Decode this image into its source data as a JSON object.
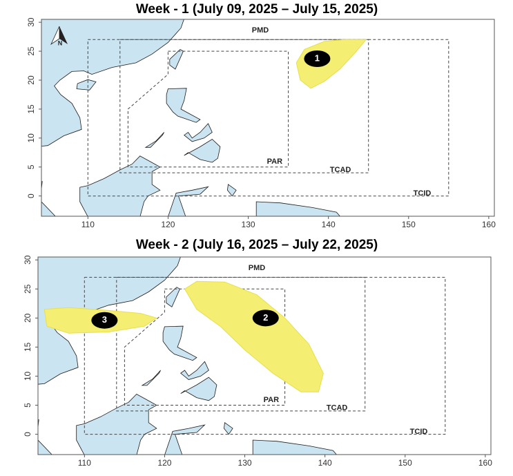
{
  "north": "N",
  "maps": [
    {
      "title": "Week - 1 (July 09, 2025 – July 15, 2025)",
      "xlim": [
        104.2,
        160.7
      ],
      "ylim": [
        -3.5,
        30.5
      ],
      "xticks": [
        110,
        120,
        130,
        140,
        150,
        160
      ],
      "yticks": [
        0,
        5,
        10,
        15,
        20,
        25,
        30
      ],
      "regions": [
        "PMD",
        "PAR",
        "TCAD",
        "TCID"
      ],
      "outlooks": [
        "1"
      ]
    },
    {
      "title": "Week - 2 (July 16, 2025 – July 22, 2025)",
      "xlim": [
        104.2,
        160.7
      ],
      "ylim": [
        -3.5,
        30.5
      ],
      "xticks": [
        110,
        120,
        130,
        140,
        150,
        160
      ],
      "yticks": [
        0,
        5,
        10,
        15,
        20,
        25,
        30
      ],
      "regions": [
        "PMD",
        "PAR",
        "TCAD",
        "TCID"
      ],
      "outlooks": [
        "2",
        "3"
      ]
    }
  ]
}
